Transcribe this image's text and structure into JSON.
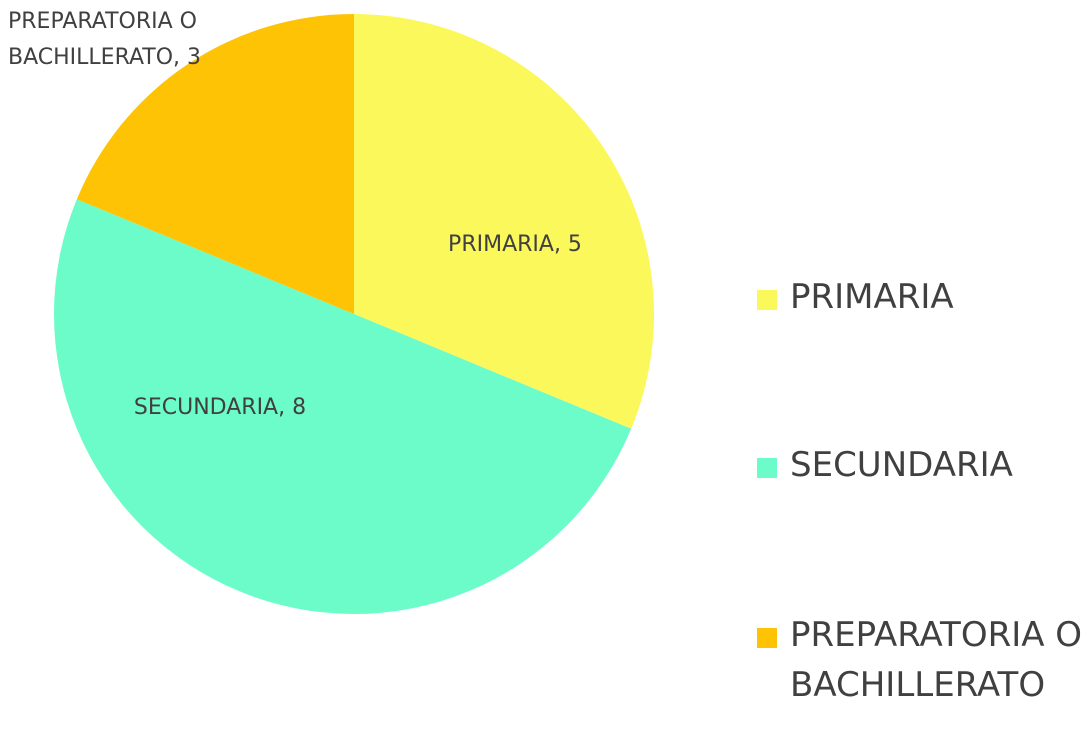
{
  "chart_data": {
    "type": "pie",
    "categories": [
      "PRIMARIA",
      "SECUNDARIA",
      "PREPARATORIA O BACHILLERATO"
    ],
    "values": [
      5,
      8,
      3
    ],
    "value_labels": [
      "PRIMARIA, 5",
      "SECUNDARIA, 8",
      "PREPARATORIA O BACHILLERATO, 3"
    ],
    "colors": [
      "#fbf85c",
      "#6cfcc9",
      "#ffc305"
    ]
  }
}
